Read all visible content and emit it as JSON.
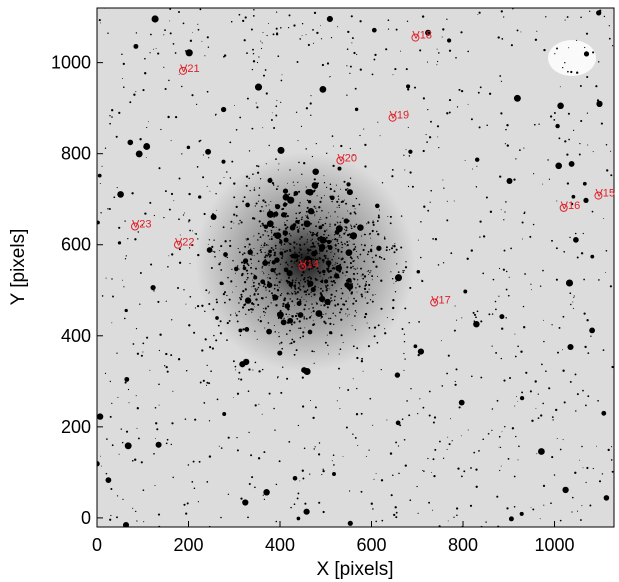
{
  "chart_data": {
    "type": "scatter",
    "xlabel": "X [pixels]",
    "ylabel": "Y [pixels]",
    "labels": [
      "V14",
      "V15",
      "V16",
      "V17",
      "V18",
      "V19",
      "V20",
      "V21",
      "V22",
      "V23"
    ],
    "x": [
      449,
      1096,
      1020,
      737,
      696,
      646,
      532,
      188,
      177,
      83
    ],
    "values": [
      552,
      708,
      681,
      473,
      1055,
      879,
      785,
      982,
      600,
      640
    ],
    "color": "#e0202a",
    "xlim": [
      0,
      1130
    ],
    "ylim": [
      -20,
      1120
    ],
    "xticks": [
      0,
      200,
      400,
      600,
      800,
      1000
    ],
    "yticks": [
      0,
      200,
      400,
      600,
      800,
      1000
    ]
  }
}
